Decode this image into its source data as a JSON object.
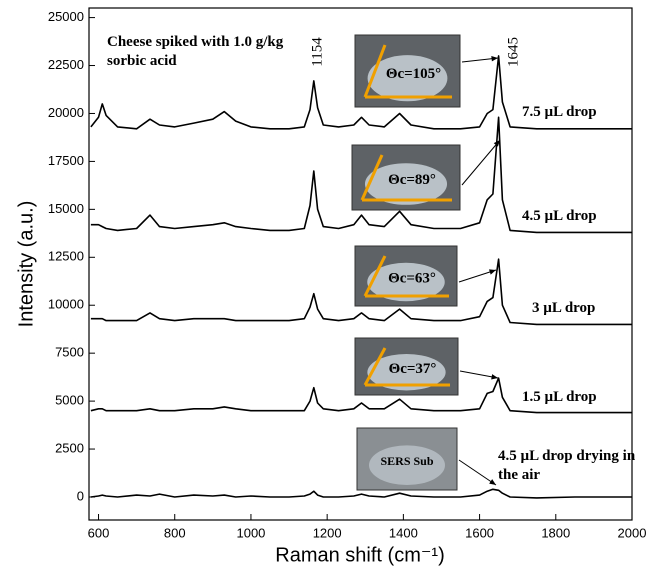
{
  "chart_data": {
    "type": "line",
    "x_label": "Raman shift (cm⁻¹)",
    "y_label": "Intensity (a.u.)",
    "xlim": [
      575,
      2000
    ],
    "ylim": [
      -1200,
      25500
    ],
    "xticks": [
      600,
      800,
      1000,
      1200,
      1400,
      1600,
      1800,
      2000
    ],
    "yticks": [
      0,
      2500,
      5000,
      7500,
      10000,
      12500,
      15000,
      17500,
      20000,
      22500,
      25000
    ],
    "x": [
      580,
      600,
      610,
      620,
      650,
      700,
      735,
      760,
      800,
      850,
      900,
      930,
      960,
      1000,
      1050,
      1100,
      1140,
      1155,
      1165,
      1175,
      1190,
      1230,
      1270,
      1290,
      1310,
      1350,
      1390,
      1420,
      1480,
      1550,
      1600,
      1620,
      1635,
      1650,
      1660,
      1680,
      1750,
      1850,
      1950,
      2000
    ],
    "series": [
      {
        "name": "7.5 µL drop",
        "color": "#000000",
        "values": [
          19300,
          19800,
          20500,
          19900,
          19300,
          19200,
          19700,
          19400,
          19300,
          19500,
          19700,
          20100,
          19600,
          19300,
          19200,
          19200,
          19300,
          20200,
          21700,
          20300,
          19400,
          19300,
          19400,
          19800,
          19400,
          19300,
          20000,
          19400,
          19200,
          19200,
          19300,
          20000,
          20200,
          23000,
          20600,
          19300,
          19200,
          19200,
          19200,
          19200
        ]
      },
      {
        "name": "4.5 µL drop",
        "color": "#000000",
        "values": [
          14200,
          14200,
          14100,
          14000,
          13900,
          14000,
          14700,
          14100,
          14000,
          14100,
          14200,
          14300,
          14100,
          14000,
          13900,
          13900,
          14000,
          15200,
          17000,
          15000,
          14100,
          14000,
          14200,
          14700,
          14200,
          14100,
          14900,
          14200,
          14000,
          14000,
          14300,
          15500,
          15800,
          19800,
          15500,
          13900,
          13800,
          13800,
          13800,
          13800
        ]
      },
      {
        "name": "3 µL drop",
        "color": "#000000",
        "values": [
          9300,
          9300,
          9300,
          9200,
          9200,
          9200,
          9600,
          9300,
          9200,
          9300,
          9300,
          9300,
          9200,
          9200,
          9200,
          9200,
          9300,
          9900,
          10600,
          9800,
          9300,
          9200,
          9300,
          9600,
          9300,
          9200,
          9800,
          9300,
          9200,
          9200,
          9400,
          10200,
          10400,
          12400,
          10000,
          9100,
          9000,
          9000,
          9000,
          9000
        ]
      },
      {
        "name": "1.5 µL drop",
        "color": "#000000",
        "values": [
          4500,
          4600,
          4600,
          4500,
          4500,
          4500,
          4600,
          4500,
          4500,
          4600,
          4600,
          4700,
          4600,
          4500,
          4500,
          4500,
          4500,
          5000,
          5700,
          4900,
          4600,
          4500,
          4600,
          4900,
          4600,
          4600,
          5100,
          4600,
          4500,
          4500,
          4600,
          5400,
          5500,
          6200,
          5200,
          4500,
          4400,
          4400,
          4400,
          4400
        ]
      },
      {
        "name": "4.5 µL drop drying in the air",
        "color": "#000000",
        "values": [
          0,
          50,
          100,
          50,
          0,
          100,
          50,
          150,
          0,
          100,
          50,
          100,
          0,
          50,
          0,
          0,
          50,
          150,
          300,
          100,
          0,
          0,
          50,
          150,
          50,
          0,
          200,
          50,
          0,
          0,
          100,
          300,
          400,
          350,
          200,
          0,
          -50,
          0,
          0,
          0
        ]
      }
    ],
    "annotations": [
      "Cheese spiked with 1.0 g/kg sorbic acid",
      "1154",
      "1645"
    ],
    "insets": [
      "Θc=105°",
      "Θc=89°",
      "Θc=63°",
      "Θc=37°",
      "SERS Sub"
    ]
  }
}
